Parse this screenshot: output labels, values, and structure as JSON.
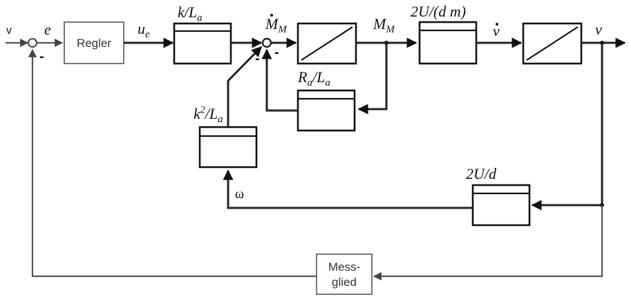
{
  "labels": {
    "input_v": "v",
    "error_e": "e",
    "controller": "Regler",
    "u": "u",
    "u_sub": "e",
    "gain1_num": "k/L",
    "gain1_sub": "a",
    "mdot": "M",
    "mdot_sub": "M",
    "m": "M",
    "m_sub": "M",
    "block_2U_dm": "2U/(d m)",
    "vdot": "v",
    "v_out": "v",
    "ra": "R",
    "ra_sub1": "a",
    "ra_mid": "/L",
    "ra_sub2": "a",
    "k2": "k",
    "k2_sup": "2",
    "k2_mid": "/L",
    "k2_sub": "a",
    "block_2U_d": "2U/d",
    "omega": "ω",
    "sensor_line1": "Mess-",
    "sensor_line2": "glied",
    "minus": "-"
  }
}
